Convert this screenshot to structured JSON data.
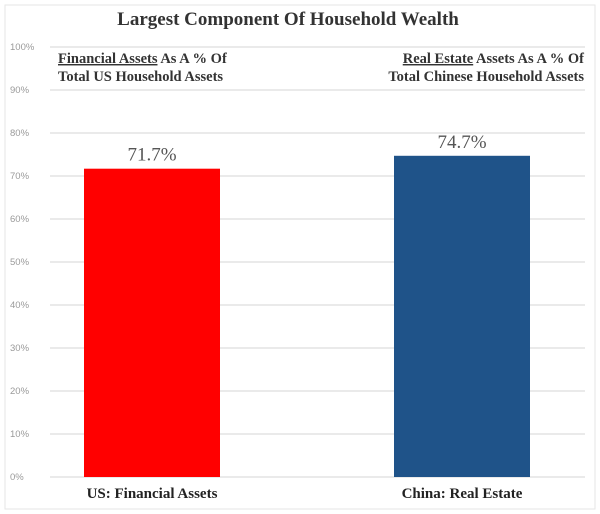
{
  "chart_data": {
    "type": "bar",
    "title": "Largest Component Of  Household Wealth",
    "categories": [
      "US: Financial Assets",
      "China: Real Estate"
    ],
    "values": [
      71.7,
      74.7
    ],
    "data_labels": [
      "71.7%",
      "74.7%"
    ],
    "bar_colors": [
      "#ff0000",
      "#1f5389"
    ],
    "ylim": [
      0,
      100
    ],
    "yticks": [
      0,
      10,
      20,
      30,
      40,
      50,
      60,
      70,
      80,
      90,
      100
    ],
    "ytick_labels": [
      "0%",
      "10%",
      "20%",
      "30%",
      "40%",
      "50%",
      "60%",
      "70%",
      "80%",
      "90%",
      "100%"
    ],
    "grid": true,
    "annotations": [
      {
        "underlined": "Financial Assets",
        "rest": " As A % Of",
        "line2": "Total US Household Assets"
      },
      {
        "underlined": "Real Estate",
        "rest": " Assets As A % Of",
        "line2": "Total Chinese Household Assets"
      }
    ]
  }
}
